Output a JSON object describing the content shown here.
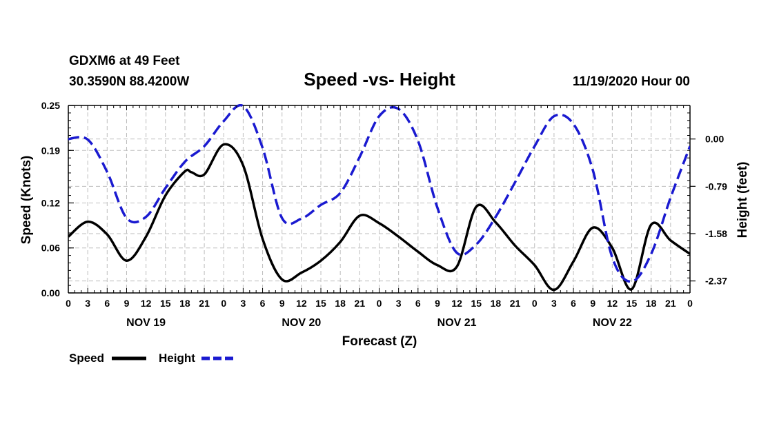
{
  "header": {
    "station": "GDXM6 at 49 Feet",
    "coords": "30.3590N 88.4200W",
    "title": "Speed -vs- Height",
    "datetime": "11/19/2020 Hour 00"
  },
  "legend": {
    "speed_label": "Speed",
    "height_label": "Height"
  },
  "colors": {
    "speed": "#000000",
    "height": "#1a1ad0",
    "grid": "#bdbdbd"
  },
  "chart_data": {
    "type": "line",
    "title": "Speed -vs- Height",
    "xlabel": "Forecast (Z)",
    "ylabel_left": "Speed (Knots)",
    "ylabel_right": "Height (feet)",
    "x_unit": "hours since 11/19 00Z",
    "xlim": [
      0,
      96
    ],
    "x_ticks": [
      0,
      3,
      6,
      9,
      12,
      15,
      18,
      21,
      24,
      27,
      30,
      33,
      36,
      39,
      42,
      45,
      48,
      51,
      54,
      57,
      60,
      63,
      66,
      69,
      72,
      75,
      78,
      81,
      84,
      87,
      90,
      93,
      96
    ],
    "x_tick_labels": [
      "0",
      "3",
      "6",
      "9",
      "12",
      "15",
      "18",
      "21",
      "0",
      "3",
      "6",
      "9",
      "12",
      "15",
      "18",
      "21",
      "0",
      "3",
      "6",
      "9",
      "12",
      "15",
      "18",
      "21",
      "0",
      "3",
      "6",
      "9",
      "12",
      "15",
      "18",
      "21",
      "0"
    ],
    "day_labels": [
      {
        "x": 12,
        "label": "NOV 19"
      },
      {
        "x": 36,
        "label": "NOV 20"
      },
      {
        "x": 60,
        "label": "NOV 21"
      },
      {
        "x": 84,
        "label": "NOV 22"
      }
    ],
    "left_axis": {
      "ylim": [
        0,
        0.25
      ],
      "ticks": [
        0.0,
        0.06,
        0.12,
        0.19,
        0.25
      ],
      "tick_labels": [
        "0.00",
        "0.06",
        "0.12",
        "0.19",
        "0.25"
      ]
    },
    "right_axis": {
      "ylim": [
        -2.57,
        0.56
      ],
      "ticks": [
        0.0,
        -0.79,
        -1.58,
        -2.37
      ],
      "tick_labels": [
        "0.00",
        "-0.79",
        "-1.58",
        "-2.37"
      ]
    },
    "grid": true,
    "legend_position": "bottom-left",
    "series": [
      {
        "name": "Speed",
        "axis": "left",
        "style": "solid",
        "x": [
          0,
          3,
          6,
          9,
          12,
          15,
          18,
          19,
          21,
          24,
          27,
          30,
          33,
          36,
          39,
          42,
          45,
          48,
          51,
          54,
          57,
          60,
          63,
          66,
          69,
          72,
          75,
          78,
          81,
          84,
          87,
          90,
          93,
          96
        ],
        "values": [
          0.075,
          0.095,
          0.078,
          0.043,
          0.075,
          0.13,
          0.162,
          0.161,
          0.158,
          0.198,
          0.17,
          0.072,
          0.018,
          0.027,
          0.043,
          0.068,
          0.103,
          0.093,
          0.075,
          0.055,
          0.037,
          0.035,
          0.115,
          0.094,
          0.063,
          0.037,
          0.004,
          0.042,
          0.087,
          0.06,
          0.005,
          0.091,
          0.07,
          0.052
        ]
      },
      {
        "name": "Height",
        "axis": "right",
        "style": "dashed",
        "x": [
          0,
          3,
          6,
          9,
          12,
          15,
          18,
          21,
          24,
          27,
          30,
          33,
          36,
          39,
          42,
          45,
          48,
          51,
          54,
          57,
          60,
          63,
          66,
          69,
          72,
          75,
          78,
          81,
          84,
          87,
          90,
          93,
          96
        ],
        "values": [
          0.0,
          -0.01,
          -0.55,
          -1.32,
          -1.3,
          -0.82,
          -0.38,
          -0.12,
          0.3,
          0.55,
          -0.15,
          -1.32,
          -1.33,
          -1.1,
          -0.9,
          -0.3,
          0.38,
          0.5,
          -0.03,
          -1.15,
          -1.9,
          -1.76,
          -1.3,
          -0.72,
          -0.12,
          0.38,
          0.25,
          -0.52,
          -1.98,
          -2.38,
          -1.92,
          -0.98,
          -0.12
        ]
      }
    ]
  }
}
